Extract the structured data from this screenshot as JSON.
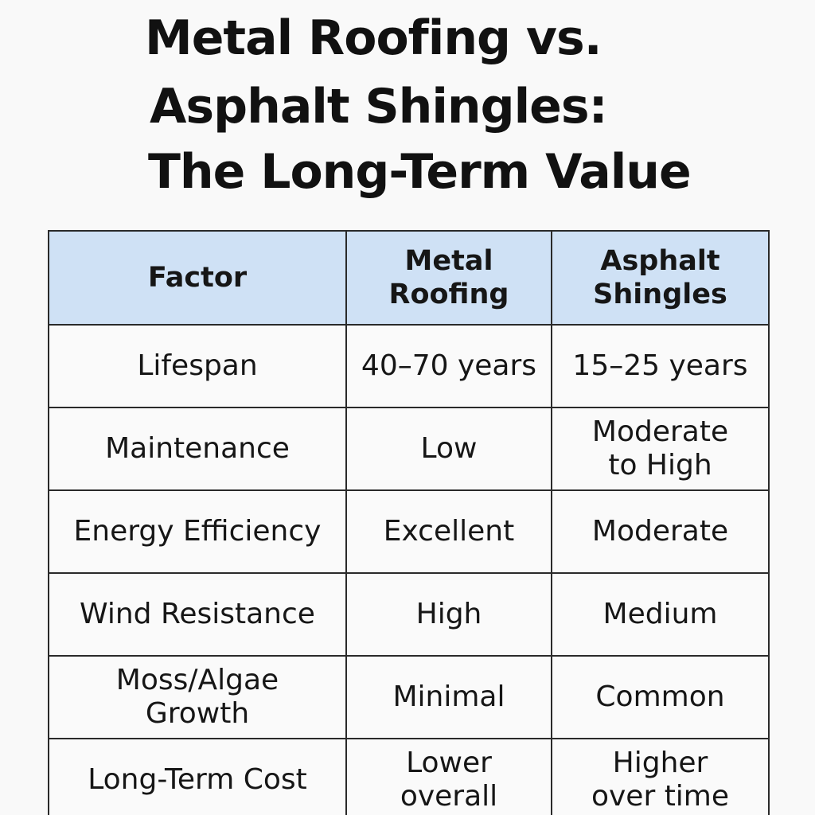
{
  "title": {
    "line1": "Metal Roofing vs.",
    "line2": "Asphalt Shingles:",
    "line3": "The Long-Term Value"
  },
  "table": {
    "headers": [
      "Factor",
      "Metal Roofing",
      "Asphalt Shingles"
    ],
    "rows": [
      [
        "Lifespan",
        "40–70 years",
        "15–25 years"
      ],
      [
        "Maintenance",
        "Low",
        "Moderate to High"
      ],
      [
        "Energy Efficiency",
        "Excellent",
        "Moderate"
      ],
      [
        "Wind Resistance",
        "High",
        "Medium"
      ],
      [
        "Moss/Algae Growth",
        "Minimal",
        "Common"
      ],
      [
        "Long-Term Cost",
        "Lower overall",
        "Higher over time"
      ]
    ]
  },
  "colors": {
    "header_background": "#cfe1f5",
    "border": "#2a2a2a",
    "page_background": "#f9f9f9"
  }
}
